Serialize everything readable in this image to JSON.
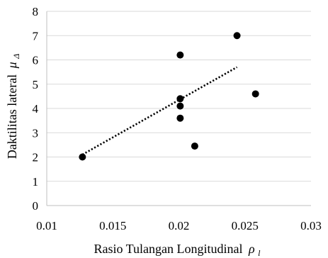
{
  "chart_data": {
    "type": "scatter",
    "title": "",
    "xlabel": "Rasio Tulangan Longitudinal",
    "xlabel_symbol": "ρ",
    "xlabel_subscript": "l",
    "ylabel": "Daktilitas lateral",
    "ylabel_symbol": "μ",
    "ylabel_subscript": "Δ",
    "xlim": [
      0.01,
      0.03
    ],
    "ylim": [
      0,
      8
    ],
    "x_ticks": [
      "0.01",
      "0.015",
      "0.02",
      "0.025",
      "0.03"
    ],
    "y_ticks": [
      "0",
      "1",
      "2",
      "3",
      "4",
      "5",
      "6",
      "7",
      "8"
    ],
    "grid": "horizontal",
    "legend": "none",
    "series": [
      {
        "x": [
          0.0127,
          0.0201,
          0.0201,
          0.0201,
          0.0201,
          0.0212,
          0.0244,
          0.0258
        ],
        "y": [
          2.0,
          6.2,
          4.4,
          4.1,
          3.6,
          2.45,
          7.0,
          4.6
        ],
        "color": "#000000"
      }
    ],
    "trendline": {
      "style": "dotted",
      "x": [
        0.0127,
        0.0244
      ],
      "y": [
        2.1,
        5.7
      ],
      "color": "#000000"
    }
  }
}
